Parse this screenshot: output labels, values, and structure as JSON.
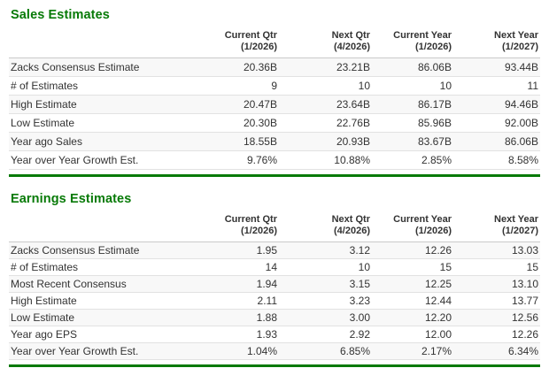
{
  "colors": {
    "accent_green": "#077a07",
    "row_stripe": "#f8f8f8",
    "row_border": "#e2e2e2",
    "header_border": "#c9c9c9",
    "text": "#333333"
  },
  "sales": {
    "title": "Sales Estimates",
    "columns": [
      {
        "label": "Current Qtr",
        "period": "(1/2026)"
      },
      {
        "label": "Next Qtr",
        "period": "(4/2026)"
      },
      {
        "label": "Current Year",
        "period": "(1/2026)"
      },
      {
        "label": "Next Year",
        "period": "(1/2027)"
      }
    ],
    "rows": [
      {
        "label": "Zacks Consensus Estimate",
        "values": [
          "20.36B",
          "23.21B",
          "86.06B",
          "93.44B"
        ]
      },
      {
        "label": "# of Estimates",
        "values": [
          "9",
          "10",
          "10",
          "11"
        ]
      },
      {
        "label": "High Estimate",
        "values": [
          "20.47B",
          "23.64B",
          "86.17B",
          "94.46B"
        ]
      },
      {
        "label": "Low Estimate",
        "values": [
          "20.30B",
          "22.76B",
          "85.96B",
          "92.00B"
        ]
      },
      {
        "label": "Year ago Sales",
        "values": [
          "18.55B",
          "20.93B",
          "83.67B",
          "86.06B"
        ]
      },
      {
        "label": "Year over Year Growth Est.",
        "values": [
          "9.76%",
          "10.88%",
          "2.85%",
          "8.58%"
        ]
      }
    ]
  },
  "earnings": {
    "title": "Earnings Estimates",
    "columns": [
      {
        "label": "Current Qtr",
        "period": "(1/2026)"
      },
      {
        "label": "Next Qtr",
        "period": "(4/2026)"
      },
      {
        "label": "Current Year",
        "period": "(1/2026)"
      },
      {
        "label": "Next Year",
        "period": "(1/2027)"
      }
    ],
    "rows": [
      {
        "label": "Zacks Consensus Estimate",
        "values": [
          "1.95",
          "3.12",
          "12.26",
          "13.03"
        ]
      },
      {
        "label": "# of Estimates",
        "values": [
          "14",
          "10",
          "15",
          "15"
        ]
      },
      {
        "label": "Most Recent Consensus",
        "values": [
          "1.94",
          "3.15",
          "12.25",
          "13.10"
        ]
      },
      {
        "label": "High Estimate",
        "values": [
          "2.11",
          "3.23",
          "12.44",
          "13.77"
        ]
      },
      {
        "label": "Low Estimate",
        "values": [
          "1.88",
          "3.00",
          "12.20",
          "12.56"
        ]
      },
      {
        "label": "Year ago EPS",
        "values": [
          "1.93",
          "2.92",
          "12.00",
          "12.26"
        ]
      },
      {
        "label": "Year over Year Growth Est.",
        "values": [
          "1.04%",
          "6.85%",
          "2.17%",
          "6.34%"
        ]
      }
    ]
  },
  "chart_data": [
    {
      "type": "table",
      "title": "Sales Estimates",
      "categories": [
        "Current Qtr (1/2026)",
        "Next Qtr (4/2026)",
        "Current Year (1/2026)",
        "Next Year (1/2027)"
      ],
      "series": [
        {
          "name": "Zacks Consensus Estimate",
          "values": [
            "20.36B",
            "23.21B",
            "86.06B",
            "93.44B"
          ]
        },
        {
          "name": "# of Estimates",
          "values": [
            9,
            10,
            10,
            11
          ]
        },
        {
          "name": "High Estimate",
          "values": [
            "20.47B",
            "23.64B",
            "86.17B",
            "94.46B"
          ]
        },
        {
          "name": "Low Estimate",
          "values": [
            "20.30B",
            "22.76B",
            "85.96B",
            "92.00B"
          ]
        },
        {
          "name": "Year ago Sales",
          "values": [
            "18.55B",
            "20.93B",
            "83.67B",
            "86.06B"
          ]
        },
        {
          "name": "Year over Year Growth Est.",
          "values": [
            "9.76%",
            "10.88%",
            "2.85%",
            "8.58%"
          ]
        }
      ]
    },
    {
      "type": "table",
      "title": "Earnings Estimates",
      "categories": [
        "Current Qtr (1/2026)",
        "Next Qtr (4/2026)",
        "Current Year (1/2026)",
        "Next Year (1/2027)"
      ],
      "series": [
        {
          "name": "Zacks Consensus Estimate",
          "values": [
            1.95,
            3.12,
            12.26,
            13.03
          ]
        },
        {
          "name": "# of Estimates",
          "values": [
            14,
            10,
            15,
            15
          ]
        },
        {
          "name": "Most Recent Consensus",
          "values": [
            1.94,
            3.15,
            12.25,
            13.1
          ]
        },
        {
          "name": "High Estimate",
          "values": [
            2.11,
            3.23,
            12.44,
            13.77
          ]
        },
        {
          "name": "Low Estimate",
          "values": [
            1.88,
            3.0,
            12.2,
            12.56
          ]
        },
        {
          "name": "Year ago EPS",
          "values": [
            1.93,
            2.92,
            12.0,
            12.26
          ]
        },
        {
          "name": "Year over Year Growth Est.",
          "values": [
            "1.04%",
            "6.85%",
            "2.17%",
            "6.34%"
          ]
        }
      ]
    }
  ]
}
